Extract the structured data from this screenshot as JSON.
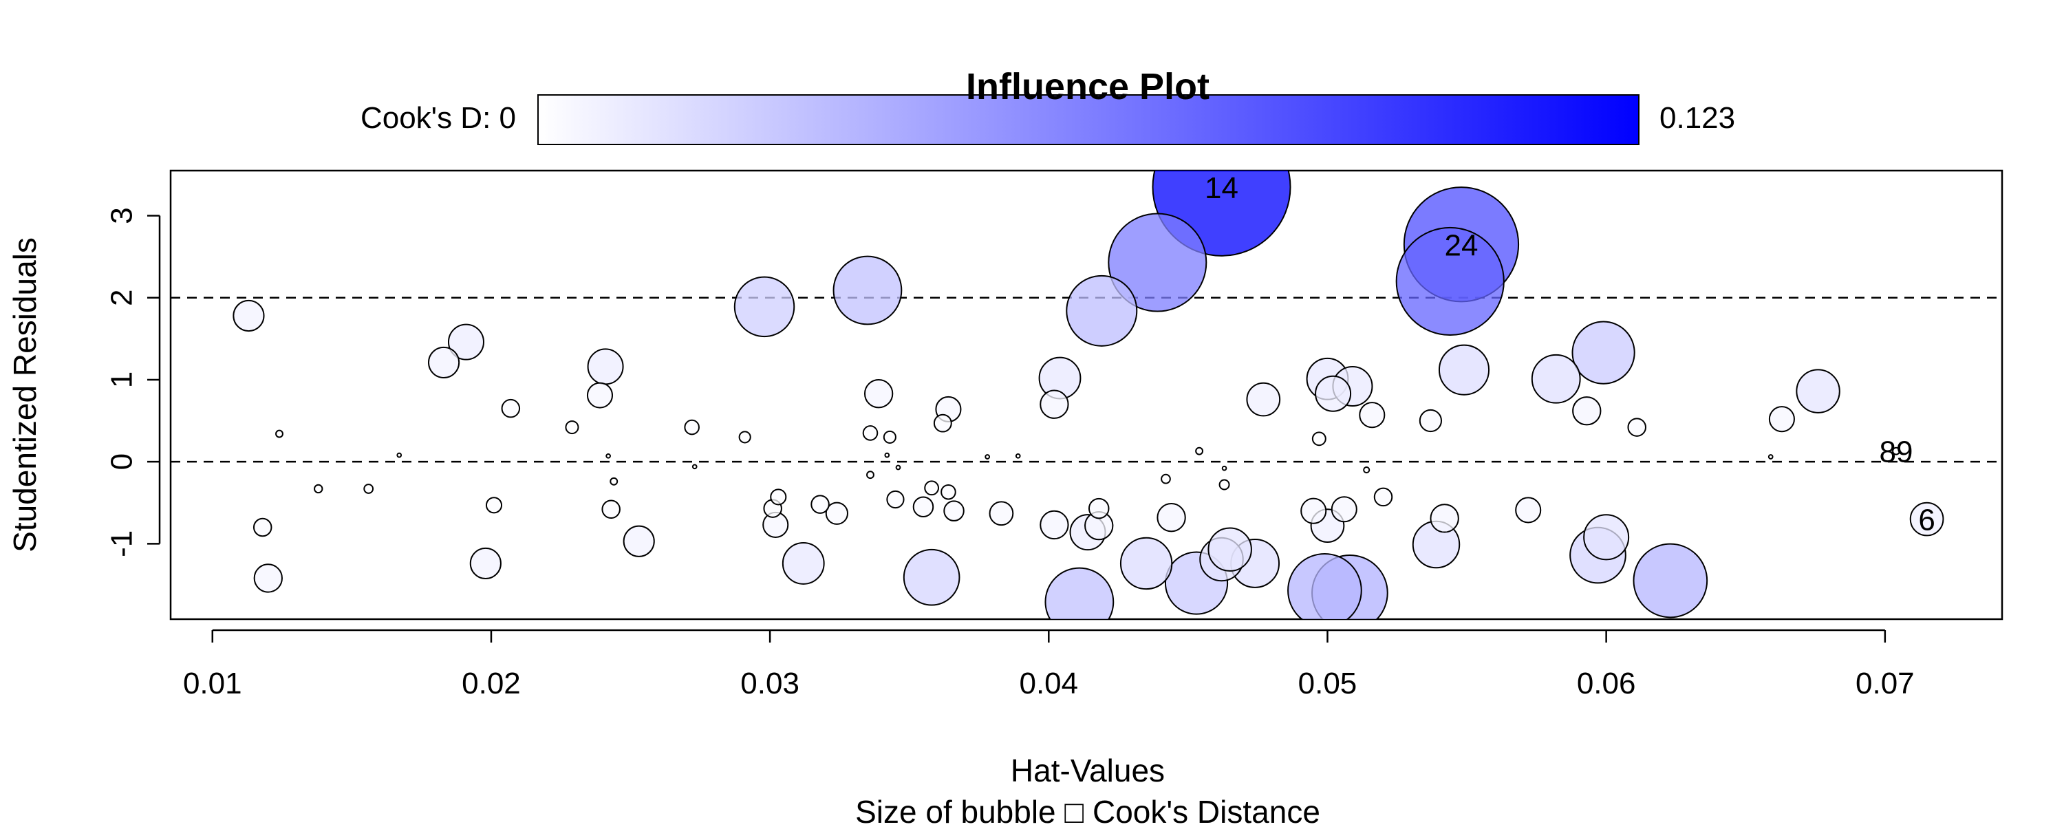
{
  "chart_data": {
    "type": "scatter",
    "title": "Influence Plot",
    "xlabel": "Hat-Values",
    "ylabel": "Studentized Residuals",
    "subtitle": "Size of bubble □ Cook's Distance",
    "xlim": [
      0.0085,
      0.0742
    ],
    "ylim": [
      -1.92,
      3.55
    ],
    "x_ticks": [
      0.01,
      0.02,
      0.03,
      0.04,
      0.05,
      0.06,
      0.07
    ],
    "x_tick_labels": [
      "0.01",
      "0.02",
      "0.03",
      "0.04",
      "0.05",
      "0.06",
      "0.07"
    ],
    "y_ticks": [
      -1,
      0,
      1,
      2,
      3
    ],
    "y_tick_labels": [
      "-1",
      "0",
      "1",
      "2",
      "3"
    ],
    "reference_lines": [
      2,
      0
    ],
    "grid": false,
    "colorbar": {
      "label": "Cook's D: 0",
      "min": 0,
      "max": 0.123,
      "max_label": "0.123",
      "min_color": "#ffffff",
      "max_color": "#0000ff"
    },
    "point_labels": [
      {
        "text": "14",
        "x": 0.0462,
        "y": 3.35
      },
      {
        "text": "24",
        "x": 0.0548,
        "y": 2.65
      },
      {
        "text": "89",
        "x": 0.0704,
        "y": 0.13
      },
      {
        "text": "6",
        "x": 0.0715,
        "y": -0.7
      }
    ],
    "points": [
      {
        "x": 0.0462,
        "y": 3.35,
        "cooks_d": 0.123
      },
      {
        "x": 0.0548,
        "y": 2.65,
        "cooks_d": 0.085
      },
      {
        "x": 0.0544,
        "y": 2.2,
        "cooks_d": 0.075
      },
      {
        "x": 0.0439,
        "y": 2.43,
        "cooks_d": 0.062
      },
      {
        "x": 0.0419,
        "y": 1.84,
        "cooks_d": 0.032
      },
      {
        "x": 0.0335,
        "y": 2.09,
        "cooks_d": 0.03
      },
      {
        "x": 0.0298,
        "y": 1.89,
        "cooks_d": 0.023
      },
      {
        "x": 0.0113,
        "y": 1.78,
        "cooks_d": 0.006
      },
      {
        "x": 0.0191,
        "y": 1.46,
        "cooks_d": 0.008
      },
      {
        "x": 0.0183,
        "y": 1.21,
        "cooks_d": 0.006
      },
      {
        "x": 0.0207,
        "y": 0.65,
        "cooks_d": 0.002
      },
      {
        "x": 0.0124,
        "y": 0.34,
        "cooks_d": 0.0003
      },
      {
        "x": 0.0167,
        "y": 0.08,
        "cooks_d": 0.0001
      },
      {
        "x": 0.0138,
        "y": -0.33,
        "cooks_d": 0.0004
      },
      {
        "x": 0.0156,
        "y": -0.33,
        "cooks_d": 0.0005
      },
      {
        "x": 0.0118,
        "y": -0.8,
        "cooks_d": 0.002
      },
      {
        "x": 0.012,
        "y": -1.42,
        "cooks_d": 0.005
      },
      {
        "x": 0.0201,
        "y": -0.53,
        "cooks_d": 0.0015
      },
      {
        "x": 0.0198,
        "y": -1.24,
        "cooks_d": 0.006
      },
      {
        "x": 0.0229,
        "y": 0.42,
        "cooks_d": 0.001
      },
      {
        "x": 0.0241,
        "y": 1.16,
        "cooks_d": 0.008
      },
      {
        "x": 0.0239,
        "y": 0.81,
        "cooks_d": 0.004
      },
      {
        "x": 0.0242,
        "y": 0.07,
        "cooks_d": 0.0001
      },
      {
        "x": 0.0244,
        "y": -0.24,
        "cooks_d": 0.0003
      },
      {
        "x": 0.0243,
        "y": -0.58,
        "cooks_d": 0.002
      },
      {
        "x": 0.0253,
        "y": -0.97,
        "cooks_d": 0.006
      },
      {
        "x": 0.0272,
        "y": 0.42,
        "cooks_d": 0.0013
      },
      {
        "x": 0.0273,
        "y": -0.06,
        "cooks_d": 0.0001
      },
      {
        "x": 0.0291,
        "y": 0.3,
        "cooks_d": 0.0008
      },
      {
        "x": 0.0303,
        "y": -0.43,
        "cooks_d": 0.0015
      },
      {
        "x": 0.0301,
        "y": -0.57,
        "cooks_d": 0.002
      },
      {
        "x": 0.0302,
        "y": -0.77,
        "cooks_d": 0.004
      },
      {
        "x": 0.0312,
        "y": -1.24,
        "cooks_d": 0.011
      },
      {
        "x": 0.0318,
        "y": -0.52,
        "cooks_d": 0.002
      },
      {
        "x": 0.0324,
        "y": -0.63,
        "cooks_d": 0.003
      },
      {
        "x": 0.0336,
        "y": 0.35,
        "cooks_d": 0.0013
      },
      {
        "x": 0.0336,
        "y": -0.16,
        "cooks_d": 0.0003
      },
      {
        "x": 0.0339,
        "y": 0.83,
        "cooks_d": 0.005
      },
      {
        "x": 0.0342,
        "y": 0.08,
        "cooks_d": 0.0001
      },
      {
        "x": 0.0343,
        "y": 0.3,
        "cooks_d": 0.0009
      },
      {
        "x": 0.0346,
        "y": -0.07,
        "cooks_d": 0.0001
      },
      {
        "x": 0.0345,
        "y": -0.46,
        "cooks_d": 0.0018
      },
      {
        "x": 0.0355,
        "y": -0.55,
        "cooks_d": 0.0025
      },
      {
        "x": 0.0358,
        "y": -0.32,
        "cooks_d": 0.0012
      },
      {
        "x": 0.0358,
        "y": -1.41,
        "cooks_d": 0.02
      },
      {
        "x": 0.0362,
        "y": 0.47,
        "cooks_d": 0.0019
      },
      {
        "x": 0.0364,
        "y": 0.64,
        "cooks_d": 0.004
      },
      {
        "x": 0.0364,
        "y": -0.37,
        "cooks_d": 0.0013
      },
      {
        "x": 0.0366,
        "y": -0.6,
        "cooks_d": 0.0025
      },
      {
        "x": 0.0378,
        "y": 0.06,
        "cooks_d": 0.0001
      },
      {
        "x": 0.0383,
        "y": -0.63,
        "cooks_d": 0.0035
      },
      {
        "x": 0.0389,
        "y": 0.07,
        "cooks_d": 0.0001
      },
      {
        "x": 0.0402,
        "y": 0.7,
        "cooks_d": 0.005
      },
      {
        "x": 0.0404,
        "y": 1.02,
        "cooks_d": 0.011
      },
      {
        "x": 0.0402,
        "y": -0.77,
        "cooks_d": 0.005
      },
      {
        "x": 0.0411,
        "y": -1.71,
        "cooks_d": 0.03
      },
      {
        "x": 0.0414,
        "y": -0.86,
        "cooks_d": 0.008
      },
      {
        "x": 0.0418,
        "y": -0.57,
        "cooks_d": 0.0025
      },
      {
        "x": 0.0418,
        "y": -0.78,
        "cooks_d": 0.005
      },
      {
        "x": 0.0435,
        "y": -1.24,
        "cooks_d": 0.017
      },
      {
        "x": 0.0442,
        "y": -0.21,
        "cooks_d": 0.0005
      },
      {
        "x": 0.0444,
        "y": -0.68,
        "cooks_d": 0.005
      },
      {
        "x": 0.0454,
        "y": 0.13,
        "cooks_d": 0.0003
      },
      {
        "x": 0.0453,
        "y": -1.48,
        "cooks_d": 0.025
      },
      {
        "x": 0.0462,
        "y": -1.19,
        "cooks_d": 0.012
      },
      {
        "x": 0.0463,
        "y": -0.08,
        "cooks_d": 0.0001
      },
      {
        "x": 0.0463,
        "y": -0.28,
        "cooks_d": 0.0006
      },
      {
        "x": 0.0465,
        "y": -1.07,
        "cooks_d": 0.012
      },
      {
        "x": 0.0474,
        "y": -1.24,
        "cooks_d": 0.015
      },
      {
        "x": 0.0477,
        "y": 0.76,
        "cooks_d": 0.007
      },
      {
        "x": 0.0495,
        "y": -0.6,
        "cooks_d": 0.004
      },
      {
        "x": 0.0497,
        "y": 0.28,
        "cooks_d": 0.0011
      },
      {
        "x": 0.0499,
        "y": -1.57,
        "cooks_d": 0.035
      },
      {
        "x": 0.05,
        "y": 1.01,
        "cooks_d": 0.011
      },
      {
        "x": 0.05,
        "y": -0.78,
        "cooks_d": 0.007
      },
      {
        "x": 0.0502,
        "y": 0.83,
        "cooks_d": 0.008
      },
      {
        "x": 0.0506,
        "y": -0.58,
        "cooks_d": 0.004
      },
      {
        "x": 0.0508,
        "y": -1.6,
        "cooks_d": 0.037
      },
      {
        "x": 0.0509,
        "y": 0.92,
        "cooks_d": 0.01
      },
      {
        "x": 0.0514,
        "y": -0.1,
        "cooks_d": 0.0002
      },
      {
        "x": 0.0516,
        "y": 0.57,
        "cooks_d": 0.004
      },
      {
        "x": 0.052,
        "y": -0.43,
        "cooks_d": 0.002
      },
      {
        "x": 0.0537,
        "y": 0.5,
        "cooks_d": 0.003
      },
      {
        "x": 0.0539,
        "y": -1.01,
        "cooks_d": 0.014
      },
      {
        "x": 0.0542,
        "y": -0.69,
        "cooks_d": 0.005
      },
      {
        "x": 0.0549,
        "y": 1.12,
        "cooks_d": 0.016
      },
      {
        "x": 0.0572,
        "y": -0.59,
        "cooks_d": 0.004
      },
      {
        "x": 0.0582,
        "y": 1.01,
        "cooks_d": 0.015
      },
      {
        "x": 0.0593,
        "y": 0.62,
        "cooks_d": 0.005
      },
      {
        "x": 0.0597,
        "y": -1.14,
        "cooks_d": 0.02
      },
      {
        "x": 0.0599,
        "y": 1.33,
        "cooks_d": 0.025
      },
      {
        "x": 0.06,
        "y": -0.92,
        "cooks_d": 0.013
      },
      {
        "x": 0.0611,
        "y": 0.42,
        "cooks_d": 0.002
      },
      {
        "x": 0.0623,
        "y": -1.45,
        "cooks_d": 0.035
      },
      {
        "x": 0.0659,
        "y": 0.06,
        "cooks_d": 0.0001
      },
      {
        "x": 0.0663,
        "y": 0.52,
        "cooks_d": 0.004
      },
      {
        "x": 0.0676,
        "y": 0.86,
        "cooks_d": 0.012
      },
      {
        "x": 0.0704,
        "y": 0.13,
        "cooks_d": 0.0003
      },
      {
        "x": 0.0715,
        "y": -0.7,
        "cooks_d": 0.007
      }
    ]
  }
}
